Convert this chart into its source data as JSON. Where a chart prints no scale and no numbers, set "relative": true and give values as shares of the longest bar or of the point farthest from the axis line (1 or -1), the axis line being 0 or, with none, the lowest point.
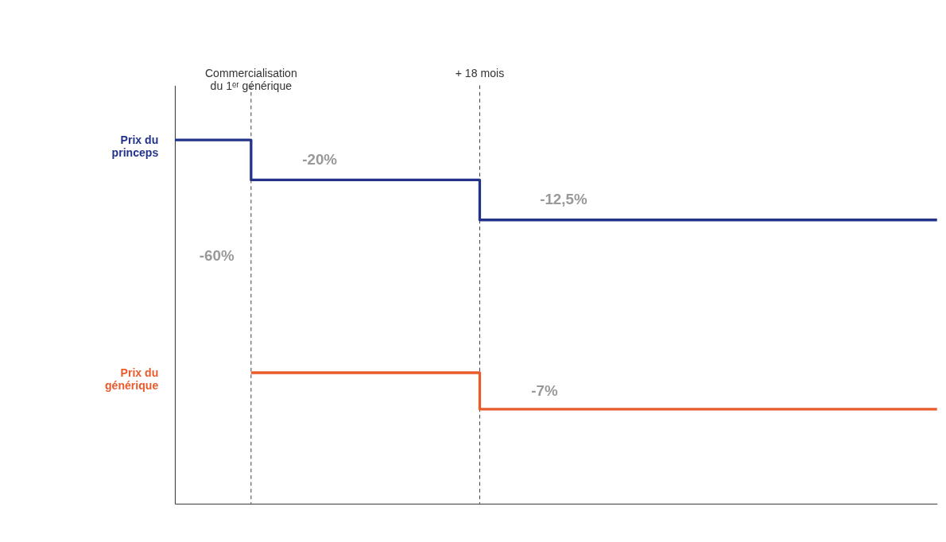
{
  "chart_data": {
    "type": "step",
    "relative": true,
    "line_style": "solid",
    "categories": [
      null,
      null,
      null,
      null,
      null,
      null,
      null,
      null,
      null,
      null,
      null
    ],
    "series": [
      {
        "name": "Prix du princeps",
        "color": "#23338a",
        "values": [
          1,
          0.89,
          0.89,
          0.89,
          0.78,
          0.78,
          0.78,
          0.78,
          0.78,
          0.78,
          0.78
        ]
      },
      {
        "name": "Prix du générique",
        "color": "#ea5b2c",
        "values": [
          null,
          0.36,
          0.36,
          0.36,
          0.26,
          0.26,
          0.26,
          0.26,
          0.26,
          0.26,
          0.26
        ]
      }
    ],
    "annotations": [
      "Commercialisation\ndu 1ᵉʳ générique",
      "+ 18 mois",
      "-20%",
      "-12,5%",
      "-60%",
      "-7%"
    ]
  }
}
